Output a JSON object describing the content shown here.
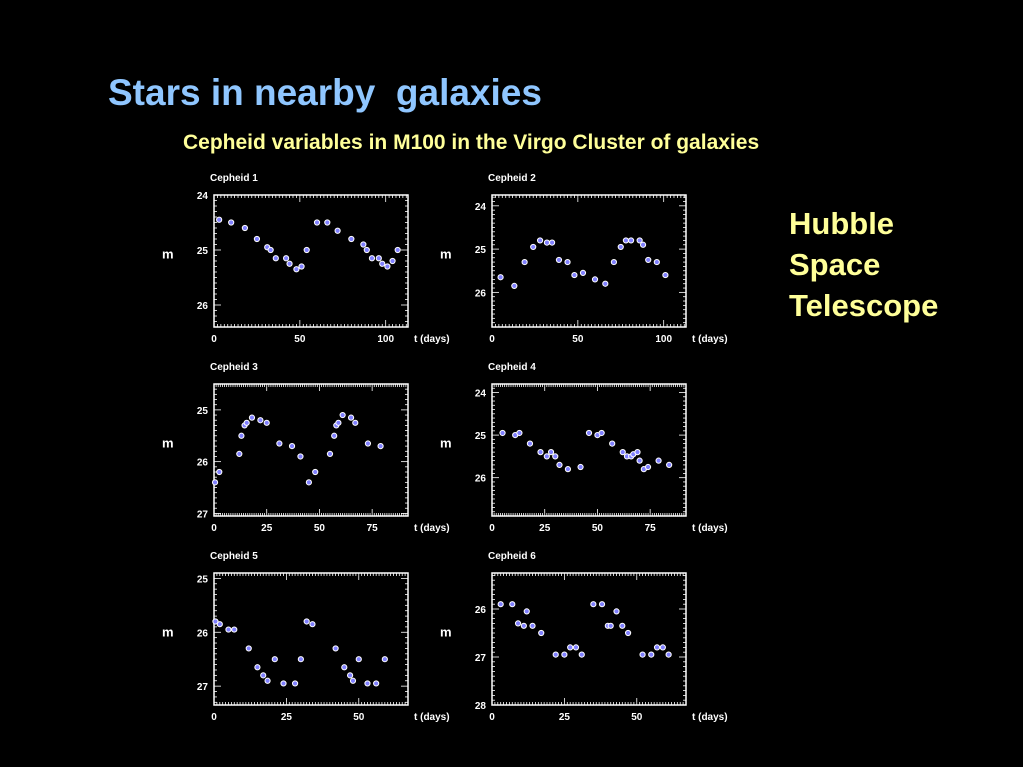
{
  "slide": {
    "title": "Stars in nearby  galaxies",
    "subtitle": "Cepheid variables in M100 in the Virgo Cluster of galaxies",
    "side_label": [
      "Hubble",
      "Space",
      "Telescope"
    ]
  },
  "colors": {
    "background": "#000000",
    "title": "#8fc6ff",
    "subtitle": "#ffff99",
    "marker_fill": "#8080ff",
    "marker_stroke": "#ffffff"
  },
  "chart_data": [
    {
      "type": "scatter",
      "title": "Cepheid 1",
      "xlabel": "t (days)",
      "ylabel": "m",
      "xlim": [
        0,
        113
      ],
      "ylim": [
        24,
        26.4
      ],
      "y_inverted": true,
      "xticks": [
        0,
        50,
        100
      ],
      "yticks": [
        24,
        25,
        26
      ],
      "series": [
        {
          "x": [
            3,
            10,
            18,
            25,
            31,
            33,
            36,
            42,
            44,
            48,
            51,
            54,
            60,
            66,
            72,
            80,
            87,
            89,
            92,
            96,
            98,
            101,
            104,
            107
          ],
          "y": [
            24.45,
            24.5,
            24.6,
            24.8,
            24.95,
            25.0,
            25.15,
            25.15,
            25.25,
            25.35,
            25.3,
            25.0,
            24.5,
            24.5,
            24.65,
            24.8,
            24.9,
            25.0,
            25.15,
            25.15,
            25.25,
            25.3,
            25.2,
            25.0
          ]
        }
      ]
    },
    {
      "type": "scatter",
      "title": "Cepheid 2",
      "xlabel": "t (days)",
      "ylabel": "m",
      "xlim": [
        0,
        113
      ],
      "ylim": [
        23.75,
        26.8
      ],
      "y_inverted": true,
      "xticks": [
        0,
        50,
        100
      ],
      "yticks": [
        24,
        25,
        26
      ],
      "series": [
        {
          "x": [
            5,
            13,
            19,
            24,
            28,
            32,
            35,
            39,
            44,
            48,
            53,
            60,
            66,
            71,
            75,
            78,
            81,
            86,
            88,
            91,
            96,
            101
          ],
          "y": [
            25.65,
            25.85,
            25.3,
            24.95,
            24.8,
            24.85,
            24.85,
            25.25,
            25.3,
            25.6,
            25.55,
            25.7,
            25.8,
            25.3,
            24.95,
            24.8,
            24.8,
            24.8,
            24.9,
            25.25,
            25.3,
            25.6
          ]
        }
      ]
    },
    {
      "type": "scatter",
      "title": "Cepheid 3",
      "xlabel": "t (days)",
      "ylabel": "m",
      "xlim": [
        0,
        92
      ],
      "ylim": [
        24.5,
        27.05
      ],
      "y_inverted": true,
      "xticks": [
        0,
        25,
        50,
        75
      ],
      "yticks": [
        25,
        26,
        27
      ],
      "series": [
        {
          "x": [
            0.5,
            2.5,
            12,
            13,
            14.5,
            15.5,
            18,
            22,
            25,
            31,
            37,
            41,
            45,
            48,
            55,
            57,
            58,
            59,
            61,
            65,
            67,
            73,
            79
          ],
          "y": [
            26.4,
            26.2,
            25.85,
            25.5,
            25.3,
            25.25,
            25.15,
            25.2,
            25.25,
            25.65,
            25.7,
            25.9,
            26.4,
            26.2,
            25.85,
            25.5,
            25.3,
            25.25,
            25.1,
            25.15,
            25.25,
            25.65,
            25.7
          ]
        }
      ]
    },
    {
      "type": "scatter",
      "title": "Cepheid 4",
      "xlabel": "t (days)",
      "ylabel": "m",
      "xlim": [
        0,
        92
      ],
      "ylim": [
        23.8,
        26.9
      ],
      "y_inverted": true,
      "xticks": [
        0,
        25,
        50,
        75
      ],
      "yticks": [
        24,
        25,
        26
      ],
      "series": [
        {
          "x": [
            5,
            11,
            13,
            18,
            23,
            26,
            28,
            30,
            32,
            36,
            42,
            46,
            50,
            52,
            57,
            62,
            64,
            66,
            67,
            69,
            70,
            72,
            74,
            79,
            84
          ],
          "y": [
            24.95,
            25.0,
            24.95,
            25.2,
            25.4,
            25.5,
            25.4,
            25.5,
            25.7,
            25.8,
            25.75,
            24.95,
            25.0,
            24.95,
            25.2,
            25.4,
            25.5,
            25.5,
            25.45,
            25.4,
            25.6,
            25.8,
            25.75,
            25.6,
            25.7
          ]
        }
      ]
    },
    {
      "type": "scatter",
      "title": "Cepheid 5",
      "xlabel": "t (days)",
      "ylabel": "m",
      "xlim": [
        0,
        67
      ],
      "ylim": [
        24.9,
        27.35
      ],
      "y_inverted": true,
      "xticks": [
        0,
        25,
        50
      ],
      "yticks": [
        25,
        26,
        27
      ],
      "series": [
        {
          "x": [
            0.5,
            2,
            5,
            7,
            12,
            15,
            17,
            18.5,
            21,
            24,
            28,
            30,
            32,
            34,
            42,
            45,
            47,
            48,
            50,
            53,
            56,
            59
          ],
          "y": [
            25.8,
            25.85,
            25.95,
            25.95,
            26.3,
            26.65,
            26.8,
            26.9,
            26.5,
            26.95,
            26.95,
            26.5,
            25.8,
            25.85,
            26.3,
            26.65,
            26.8,
            26.9,
            26.5,
            26.95,
            26.95,
            26.5
          ]
        }
      ]
    },
    {
      "type": "scatter",
      "title": "Cepheid 6",
      "xlabel": "t (days)",
      "ylabel": "m",
      "xlim": [
        0,
        67
      ],
      "ylim": [
        25.25,
        28.0
      ],
      "y_inverted": true,
      "xticks": [
        0,
        25,
        50
      ],
      "yticks": [
        26,
        27,
        28
      ],
      "series": [
        {
          "x": [
            3,
            7,
            9,
            11,
            12,
            14,
            17,
            22,
            25,
            27,
            29,
            31,
            35,
            38,
            40,
            41,
            43,
            45,
            47,
            52,
            55,
            57,
            59,
            61
          ],
          "y": [
            25.9,
            25.9,
            26.3,
            26.35,
            26.05,
            26.35,
            26.5,
            26.95,
            26.95,
            26.8,
            26.8,
            26.95,
            25.9,
            25.9,
            26.35,
            26.35,
            26.05,
            26.35,
            26.5,
            26.95,
            26.95,
            26.8,
            26.8,
            26.95
          ]
        }
      ]
    }
  ]
}
